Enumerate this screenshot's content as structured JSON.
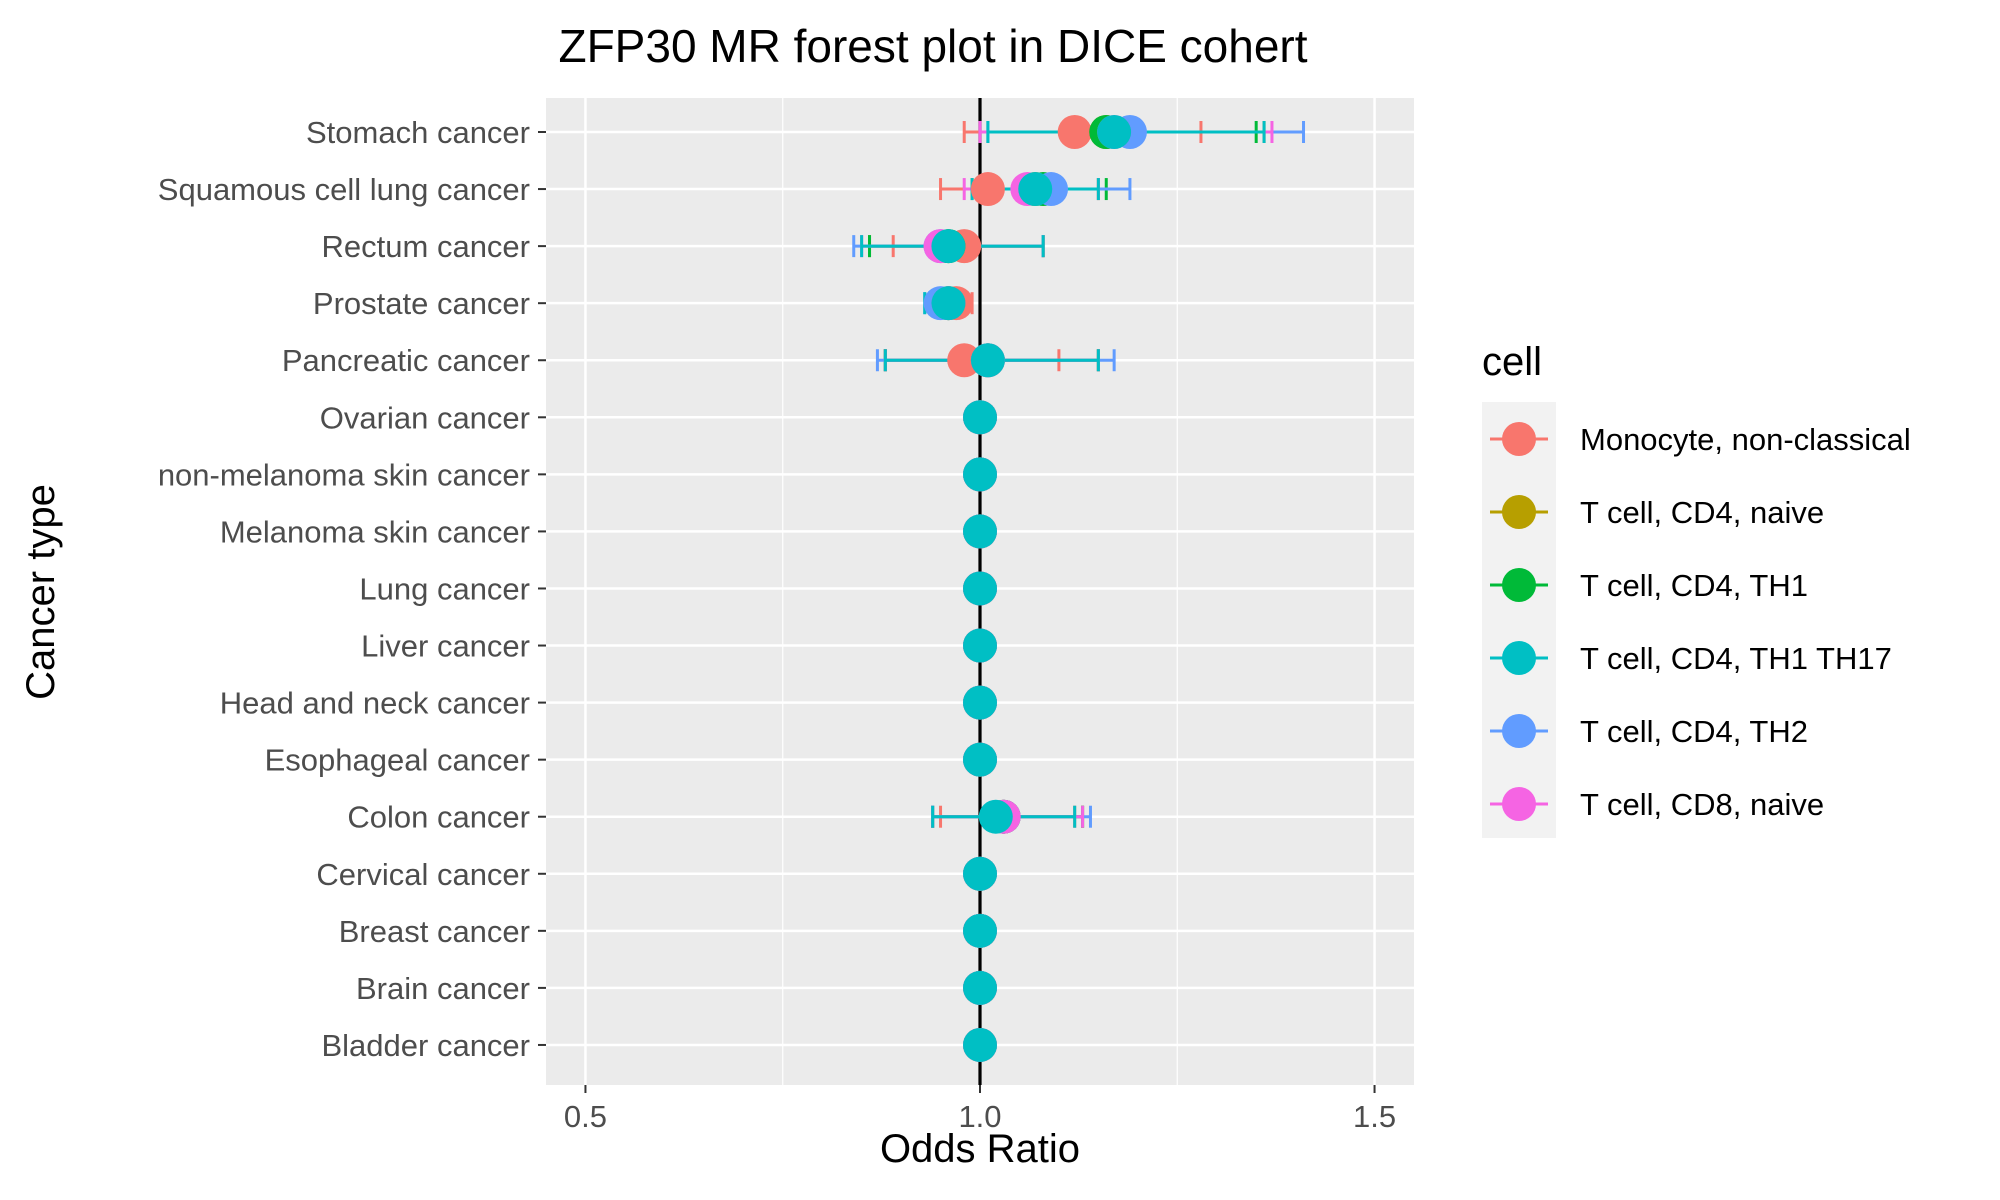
{
  "chart_data": {
    "type": "forest",
    "title": "ZFP30 MR forest plot in DICE cohert",
    "xlabel": "Odds Ratio",
    "ylabel": "Cancer type",
    "xlim": [
      0.45,
      1.55
    ],
    "xticks": [
      0.5,
      1.0,
      1.5
    ],
    "xtick_labels": [
      "0.5",
      "1.0",
      "1.5"
    ],
    "reference_line": 1.0,
    "categories": [
      "Stomach cancer",
      "Squamous cell lung cancer",
      "Rectum cancer",
      "Prostate cancer",
      "Pancreatic cancer",
      "Ovarian cancer",
      "non-melanoma skin cancer",
      "Melanoma skin cancer",
      "Lung cancer",
      "Liver cancer",
      "Head and neck cancer",
      "Esophageal cancer",
      "Colon cancer",
      "Cervical cancer",
      "Breast cancer",
      "Brain cancer",
      "Bladder cancer"
    ],
    "legend": {
      "title": "cell",
      "position": "right"
    },
    "series": [
      {
        "name": "Monocyte, non-classical",
        "color": "#F8766D",
        "points": [
          {
            "category": "Stomach cancer",
            "or": 1.12,
            "lo": 0.98,
            "hi": 1.28
          },
          {
            "category": "Squamous cell lung cancer",
            "or": 1.01,
            "lo": 0.95,
            "hi": 1.07
          },
          {
            "category": "Rectum cancer",
            "or": 0.98,
            "lo": 0.89,
            "hi": 1.08
          },
          {
            "category": "Prostate cancer",
            "or": 0.97,
            "lo": 0.95,
            "hi": 0.99
          },
          {
            "category": "Pancreatic cancer",
            "or": 0.98,
            "lo": 0.88,
            "hi": 1.1
          },
          {
            "category": "Ovarian cancer",
            "or": 1.0,
            "lo": 1.0,
            "hi": 1.0
          },
          {
            "category": "non-melanoma skin cancer",
            "or": 1.0,
            "lo": 1.0,
            "hi": 1.0
          },
          {
            "category": "Melanoma skin cancer",
            "or": 1.0,
            "lo": 1.0,
            "hi": 1.0
          },
          {
            "category": "Lung cancer",
            "or": 1.0,
            "lo": 1.0,
            "hi": 1.0
          },
          {
            "category": "Liver cancer",
            "or": 1.0,
            "lo": 1.0,
            "hi": 1.0
          },
          {
            "category": "Head and neck cancer",
            "or": 1.0,
            "lo": 1.0,
            "hi": 1.0
          },
          {
            "category": "Esophageal cancer",
            "or": 1.0,
            "lo": 1.0,
            "hi": 1.0
          },
          {
            "category": "Colon cancer",
            "or": 1.03,
            "lo": 0.95,
            "hi": 1.12
          },
          {
            "category": "Cervical cancer",
            "or": 1.0,
            "lo": 1.0,
            "hi": 1.0
          },
          {
            "category": "Breast cancer",
            "or": 1.0,
            "lo": 1.0,
            "hi": 1.0
          },
          {
            "category": "Brain cancer",
            "or": 1.0,
            "lo": 1.0,
            "hi": 1.0
          },
          {
            "category": "Bladder cancer",
            "or": 1.0,
            "lo": 1.0,
            "hi": 1.0
          }
        ]
      },
      {
        "name": "T cell, CD4, naive",
        "color": "#B79F00",
        "points": [
          {
            "category": "Stomach cancer",
            "or": 1.16,
            "lo": 1.0,
            "hi": 1.36
          },
          {
            "category": "Squamous cell lung cancer",
            "or": 1.07,
            "lo": 0.99,
            "hi": 1.15
          },
          {
            "category": "Rectum cancer",
            "or": 0.96,
            "lo": 0.86,
            "hi": 1.08
          },
          {
            "category": "Prostate cancer",
            "or": 0.96,
            "lo": 0.94,
            "hi": 0.98
          },
          {
            "category": "Pancreatic cancer",
            "or": 1.01,
            "lo": 0.88,
            "hi": 1.15
          },
          {
            "category": "Ovarian cancer",
            "or": 1.0,
            "lo": 1.0,
            "hi": 1.0
          },
          {
            "category": "non-melanoma skin cancer",
            "or": 1.0,
            "lo": 1.0,
            "hi": 1.0
          },
          {
            "category": "Melanoma skin cancer",
            "or": 1.0,
            "lo": 1.0,
            "hi": 1.0
          },
          {
            "category": "Lung cancer",
            "or": 1.0,
            "lo": 1.0,
            "hi": 1.0
          },
          {
            "category": "Liver cancer",
            "or": 1.0,
            "lo": 1.0,
            "hi": 1.0
          },
          {
            "category": "Head and neck cancer",
            "or": 1.0,
            "lo": 1.0,
            "hi": 1.0
          },
          {
            "category": "Esophageal cancer",
            "or": 1.0,
            "lo": 1.0,
            "hi": 1.0
          },
          {
            "category": "Colon cancer",
            "or": 1.03,
            "lo": 0.94,
            "hi": 1.13
          },
          {
            "category": "Cervical cancer",
            "or": 1.0,
            "lo": 1.0,
            "hi": 1.0
          },
          {
            "category": "Breast cancer",
            "or": 1.0,
            "lo": 1.0,
            "hi": 1.0
          },
          {
            "category": "Brain cancer",
            "or": 1.0,
            "lo": 1.0,
            "hi": 1.0
          },
          {
            "category": "Bladder cancer",
            "or": 1.0,
            "lo": 1.0,
            "hi": 1.0
          }
        ]
      },
      {
        "name": "T cell, CD4, TH1",
        "color": "#00BA38",
        "points": [
          {
            "category": "Stomach cancer",
            "or": 1.16,
            "lo": 1.0,
            "hi": 1.35
          },
          {
            "category": "Squamous cell lung cancer",
            "or": 1.08,
            "lo": 1.0,
            "hi": 1.16
          },
          {
            "category": "Rectum cancer",
            "or": 0.96,
            "lo": 0.86,
            "hi": 1.08
          },
          {
            "category": "Prostate cancer",
            "or": 0.96,
            "lo": 0.94,
            "hi": 0.98
          },
          {
            "category": "Pancreatic cancer",
            "or": 1.01,
            "lo": 0.88,
            "hi": 1.15
          },
          {
            "category": "Ovarian cancer",
            "or": 1.0,
            "lo": 1.0,
            "hi": 1.0
          },
          {
            "category": "non-melanoma skin cancer",
            "or": 1.0,
            "lo": 1.0,
            "hi": 1.0
          },
          {
            "category": "Melanoma skin cancer",
            "or": 1.0,
            "lo": 1.0,
            "hi": 1.0
          },
          {
            "category": "Lung cancer",
            "or": 1.0,
            "lo": 1.0,
            "hi": 1.0
          },
          {
            "category": "Liver cancer",
            "or": 1.0,
            "lo": 1.0,
            "hi": 1.0
          },
          {
            "category": "Head and neck cancer",
            "or": 1.0,
            "lo": 1.0,
            "hi": 1.0
          },
          {
            "category": "Esophageal cancer",
            "or": 1.0,
            "lo": 1.0,
            "hi": 1.0
          },
          {
            "category": "Colon cancer",
            "or": 1.03,
            "lo": 0.94,
            "hi": 1.13
          },
          {
            "category": "Cervical cancer",
            "or": 1.0,
            "lo": 1.0,
            "hi": 1.0
          },
          {
            "category": "Breast cancer",
            "or": 1.0,
            "lo": 1.0,
            "hi": 1.0
          },
          {
            "category": "Brain cancer",
            "or": 1.0,
            "lo": 1.0,
            "hi": 1.0
          },
          {
            "category": "Bladder cancer",
            "or": 1.0,
            "lo": 1.0,
            "hi": 1.0
          }
        ]
      },
      {
        "name": "T cell, CD4, TH2",
        "color": "#619CFF",
        "points": [
          {
            "category": "Stomach cancer",
            "or": 1.19,
            "lo": 1.01,
            "hi": 1.41
          },
          {
            "category": "Squamous cell lung cancer",
            "or": 1.09,
            "lo": 1.0,
            "hi": 1.19
          },
          {
            "category": "Rectum cancer",
            "or": 0.95,
            "lo": 0.84,
            "hi": 1.08
          },
          {
            "category": "Prostate cancer",
            "or": 0.95,
            "lo": 0.93,
            "hi": 0.98
          },
          {
            "category": "Pancreatic cancer",
            "or": 1.01,
            "lo": 0.87,
            "hi": 1.17
          },
          {
            "category": "Ovarian cancer",
            "or": 1.0,
            "lo": 1.0,
            "hi": 1.0
          },
          {
            "category": "non-melanoma skin cancer",
            "or": 1.0,
            "lo": 1.0,
            "hi": 1.0
          },
          {
            "category": "Melanoma skin cancer",
            "or": 1.0,
            "lo": 1.0,
            "hi": 1.0
          },
          {
            "category": "Lung cancer",
            "or": 1.0,
            "lo": 1.0,
            "hi": 1.0
          },
          {
            "category": "Liver cancer",
            "or": 1.0,
            "lo": 1.0,
            "hi": 1.0
          },
          {
            "category": "Head and neck cancer",
            "or": 1.0,
            "lo": 1.0,
            "hi": 1.0
          },
          {
            "category": "Esophageal cancer",
            "or": 1.0,
            "lo": 1.0,
            "hi": 1.0
          },
          {
            "category": "Colon cancer",
            "or": 1.03,
            "lo": 0.94,
            "hi": 1.14
          },
          {
            "category": "Cervical cancer",
            "or": 1.0,
            "lo": 1.0,
            "hi": 1.0
          },
          {
            "category": "Breast cancer",
            "or": 1.0,
            "lo": 1.0,
            "hi": 1.0
          },
          {
            "category": "Brain cancer",
            "or": 1.0,
            "lo": 1.0,
            "hi": 1.0
          },
          {
            "category": "Bladder cancer",
            "or": 1.0,
            "lo": 1.0,
            "hi": 1.0
          }
        ]
      },
      {
        "name": "T cell, CD8, naive",
        "color": "#F564E3",
        "points": [
          {
            "category": "Stomach cancer",
            "or": 1.17,
            "lo": 1.0,
            "hi": 1.37
          },
          {
            "category": "Squamous cell lung cancer",
            "or": 1.06,
            "lo": 0.98,
            "hi": 1.15
          },
          {
            "category": "Rectum cancer",
            "or": 0.95,
            "lo": 0.85,
            "hi": 1.08
          },
          {
            "category": "Prostate cancer",
            "or": 0.96,
            "lo": 0.94,
            "hi": 0.98
          },
          {
            "category": "Pancreatic cancer",
            "or": 1.01,
            "lo": 0.88,
            "hi": 1.15
          },
          {
            "category": "Ovarian cancer",
            "or": 1.0,
            "lo": 1.0,
            "hi": 1.0
          },
          {
            "category": "non-melanoma skin cancer",
            "or": 1.0,
            "lo": 1.0,
            "hi": 1.0
          },
          {
            "category": "Melanoma skin cancer",
            "or": 1.0,
            "lo": 1.0,
            "hi": 1.0
          },
          {
            "category": "Lung cancer",
            "or": 1.0,
            "lo": 1.0,
            "hi": 1.0
          },
          {
            "category": "Liver cancer",
            "or": 1.0,
            "lo": 1.0,
            "hi": 1.0
          },
          {
            "category": "Head and neck cancer",
            "or": 1.0,
            "lo": 1.0,
            "hi": 1.0
          },
          {
            "category": "Esophageal cancer",
            "or": 1.0,
            "lo": 1.0,
            "hi": 1.0
          },
          {
            "category": "Colon cancer",
            "or": 1.03,
            "lo": 0.94,
            "hi": 1.13
          },
          {
            "category": "Cervical cancer",
            "or": 1.0,
            "lo": 1.0,
            "hi": 1.0
          },
          {
            "category": "Breast cancer",
            "or": 1.0,
            "lo": 1.0,
            "hi": 1.0
          },
          {
            "category": "Brain cancer",
            "or": 1.0,
            "lo": 1.0,
            "hi": 1.0
          },
          {
            "category": "Bladder cancer",
            "or": 1.0,
            "lo": 1.0,
            "hi": 1.0
          }
        ]
      },
      {
        "name": "T cell, CD4, TH1 TH17",
        "color": "#00BFC4",
        "points": [
          {
            "category": "Stomach cancer",
            "or": 1.17,
            "lo": 1.01,
            "hi": 1.36
          },
          {
            "category": "Squamous cell lung cancer",
            "or": 1.07,
            "lo": 0.99,
            "hi": 1.15
          },
          {
            "category": "Rectum cancer",
            "or": 0.96,
            "lo": 0.85,
            "hi": 1.08
          },
          {
            "category": "Prostate cancer",
            "or": 0.96,
            "lo": 0.93,
            "hi": 0.98
          },
          {
            "category": "Pancreatic cancer",
            "or": 1.01,
            "lo": 0.88,
            "hi": 1.15
          },
          {
            "category": "Ovarian cancer",
            "or": 1.0,
            "lo": 1.0,
            "hi": 1.0
          },
          {
            "category": "non-melanoma skin cancer",
            "or": 1.0,
            "lo": 1.0,
            "hi": 1.0
          },
          {
            "category": "Melanoma skin cancer",
            "or": 1.0,
            "lo": 1.0,
            "hi": 1.0
          },
          {
            "category": "Lung cancer",
            "or": 1.0,
            "lo": 1.0,
            "hi": 1.0
          },
          {
            "category": "Liver cancer",
            "or": 1.0,
            "lo": 1.0,
            "hi": 1.0
          },
          {
            "category": "Head and neck cancer",
            "or": 1.0,
            "lo": 1.0,
            "hi": 1.0
          },
          {
            "category": "Esophageal cancer",
            "or": 1.0,
            "lo": 1.0,
            "hi": 1.0
          },
          {
            "category": "Colon cancer",
            "or": 1.02,
            "lo": 0.94,
            "hi": 1.12
          },
          {
            "category": "Cervical cancer",
            "or": 1.0,
            "lo": 1.0,
            "hi": 1.0
          },
          {
            "category": "Breast cancer",
            "or": 1.0,
            "lo": 1.0,
            "hi": 1.0
          },
          {
            "category": "Brain cancer",
            "or": 1.0,
            "lo": 1.0,
            "hi": 1.0
          },
          {
            "category": "Bladder cancer",
            "or": 1.0,
            "lo": 1.0,
            "hi": 1.0
          }
        ]
      }
    ],
    "legend_order": [
      "Monocyte, non-classical",
      "T cell, CD4, naive",
      "T cell, CD4, TH1",
      "T cell, CD4, TH1 TH17",
      "T cell, CD4, TH2",
      "T cell, CD8, naive"
    ]
  },
  "colors": {
    "panel_background": "#EBEBEB",
    "grid": "#FFFFFF",
    "reference_line": "#000000",
    "legend_key_background": "#F2F2F2"
  }
}
